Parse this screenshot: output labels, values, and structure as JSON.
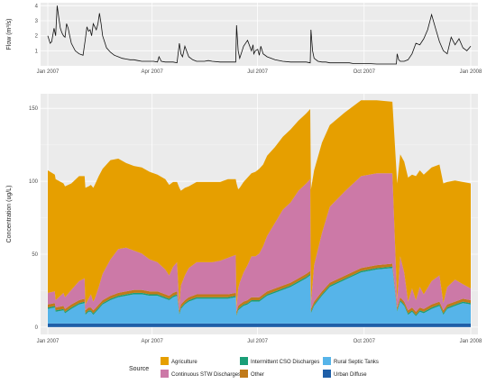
{
  "chart_data": [
    {
      "type": "line",
      "ylabel": "Flow (m³/s)",
      "ylim": [
        0,
        4.2
      ],
      "yticks": [
        1,
        2,
        3,
        4
      ],
      "xticks": [
        "Jan 2007",
        "Apr 2007",
        "Jul 2007",
        "Oct 2007",
        "Jan 2008"
      ],
      "grid": true,
      "series": [
        {
          "x": [
            0,
            3,
            5,
            8,
            10,
            12,
            14,
            16,
            18,
            20,
            22,
            24,
            26,
            28,
            30,
            35,
            40,
            45,
            48,
            50,
            52,
            54,
            56,
            58,
            60,
            62,
            64,
            66,
            68,
            70,
            75,
            80,
            85,
            90,
            95,
            100,
            105,
            110,
            115,
            120,
            125,
            130,
            135,
            140,
            142,
            145,
            150,
            155,
            160,
            165,
            168,
            170,
            172,
            175,
            180,
            185,
            190,
            195,
            200,
            205,
            210,
            220,
            230,
            240,
            241,
            243,
            245,
            250,
            255,
            260,
            262,
            263,
            265,
            268,
            270,
            272,
            275,
            280,
            290,
            300,
            310,
            320,
            330,
            335,
            336,
            338,
            340,
            345,
            350,
            355,
            360,
            365,
            370,
            375,
            380,
            385,
            390,
            400,
            410,
            420,
            430,
            440,
            445,
            446,
            448,
            450,
            455,
            460,
            465,
            470,
            475,
            480,
            485,
            490,
            495,
            500,
            505,
            510,
            515,
            520,
            525,
            530,
            535,
            540
          ],
          "values": [
            2.0,
            1.5,
            1.6,
            2.5,
            2.0,
            4.0,
            3.2,
            2.5,
            2.2,
            2.0,
            1.9,
            2.8,
            2.5,
            2.0,
            1.5,
            1.0,
            0.8,
            0.7,
            1.8,
            2.6,
            2.3,
            2.4,
            2.0,
            2.8,
            2.6,
            2.4,
            2.8,
            3.5,
            2.8,
            2.0,
            1.2,
            0.9,
            0.7,
            0.6,
            0.5,
            0.45,
            0.4,
            0.4,
            0.35,
            0.3,
            0.3,
            0.3,
            0.3,
            0.25,
            0.6,
            0.3,
            0.25,
            0.25,
            0.25,
            0.2,
            1.5,
            0.8,
            0.6,
            1.3,
            0.6,
            0.4,
            0.3,
            0.3,
            0.3,
            0.35,
            0.3,
            0.25,
            0.25,
            0.25,
            2.7,
            1.0,
            0.5,
            1.3,
            1.7,
            1.0,
            1.4,
            0.8,
            1.0,
            1.1,
            0.7,
            1.3,
            0.8,
            0.6,
            0.4,
            0.3,
            0.25,
            0.25,
            0.25,
            0.2,
            2.4,
            1.0,
            0.5,
            0.3,
            0.25,
            0.25,
            0.2,
            0.2,
            0.2,
            0.2,
            0.2,
            0.2,
            0.15,
            0.15,
            0.15,
            0.12,
            0.12,
            0.12,
            0.12,
            0.8,
            0.4,
            0.3,
            0.3,
            0.4,
            0.8,
            1.5,
            1.4,
            1.8,
            2.4,
            3.4,
            2.5,
            1.6,
            1.0,
            0.8,
            1.9,
            1.4,
            1.8,
            1.2,
            1.0,
            1.3
          ]
        }
      ]
    },
    {
      "type": "area",
      "ylabel": "Concentration (ug/L)",
      "ylim": [
        -5,
        160
      ],
      "yticks": [
        0,
        50,
        100,
        150
      ],
      "xticks": [
        "Jan 2007",
        "Apr 2007",
        "Jul 2007",
        "Oct 2007",
        "Jan 2008"
      ],
      "grid": true,
      "stacked": true,
      "legend": {
        "title": "Source",
        "placement": "bottom",
        "entries": [
          "Agriculture",
          "Continuous STW Discharges",
          "Intermittent CSO Discharges",
          "Other",
          "Rural Septic Tanks",
          "Urban Diffuse"
        ]
      },
      "x_knots": [
        0,
        9,
        10,
        20,
        22,
        30,
        40,
        47,
        48,
        52,
        55,
        58,
        60,
        65,
        70,
        80,
        90,
        100,
        110,
        120,
        130,
        140,
        150,
        155,
        160,
        165,
        168,
        170,
        175,
        180,
        190,
        200,
        210,
        220,
        230,
        240,
        241,
        243,
        245,
        250,
        255,
        260,
        265,
        270,
        275,
        280,
        290,
        300,
        310,
        320,
        330,
        335,
        336,
        340,
        350,
        360,
        380,
        400,
        420,
        440,
        446,
        450,
        455,
        460,
        465,
        470,
        475,
        480,
        490,
        500,
        505,
        510,
        520,
        530,
        540
      ],
      "series": [
        {
          "name": "Urban Diffuse",
          "color": "#1f5fa8",
          "values": [
            2.5,
            2.5,
            2.5,
            2.5,
            2.5,
            2.5,
            2.5,
            2.5,
            2.5,
            2.5,
            2.5,
            2.5,
            2.5,
            2.5,
            2.5,
            2.5,
            2.5,
            2.5,
            2.5,
            2.5,
            2.5,
            2.5,
            2.5,
            2.5,
            2.5,
            2.5,
            2.5,
            2.5,
            2.5,
            2.5,
            2.5,
            2.5,
            2.5,
            2.5,
            2.5,
            2.5,
            2.5,
            2.5,
            2.5,
            2.5,
            2.5,
            2.5,
            2.5,
            2.5,
            2.5,
            2.5,
            2.5,
            2.5,
            2.5,
            2.5,
            2.5,
            2.5,
            2.5,
            2.5,
            2.5,
            2.5,
            2.5,
            2.5,
            2.5,
            2.5,
            2.5,
            2.5,
            2.5,
            2.5,
            2.5,
            2.5,
            2.5,
            2.5,
            2.5,
            2.5,
            2.5,
            2.5,
            2.5,
            2.5,
            2.5
          ]
        },
        {
          "name": "Rural Septic Tanks",
          "color": "#56b4e9",
          "values": [
            10,
            11,
            8,
            9,
            7,
            10,
            13,
            14,
            6,
            8,
            8,
            6,
            7,
            10,
            13,
            16,
            18,
            19,
            20,
            20,
            19,
            19,
            17,
            16,
            18,
            19,
            6,
            10,
            13,
            15,
            17,
            17,
            17,
            17,
            17,
            18,
            5,
            9,
            10,
            12,
            13,
            15,
            15,
            15,
            17,
            19,
            21,
            23,
            25,
            28,
            31,
            33,
            7,
            12,
            19,
            25,
            30,
            35,
            37,
            38,
            8,
            15,
            12,
            6,
            8,
            5,
            8,
            7,
            10,
            12,
            6,
            10,
            12,
            14,
            13
          ]
        },
        {
          "name": "Intermittent CSO Discharges",
          "color": "#1a9e77",
          "values": [
            1,
            1,
            1,
            1,
            1,
            1,
            1,
            1,
            1,
            1,
            1,
            1,
            1,
            1,
            1,
            1,
            1,
            1,
            1,
            1,
            1,
            1,
            1,
            1,
            1,
            1,
            1,
            1,
            1,
            1,
            1,
            1,
            1,
            1,
            1,
            1,
            1,
            1,
            1,
            1,
            1,
            1,
            1,
            1,
            1,
            1,
            1,
            1,
            1,
            1,
            1,
            1,
            1,
            1,
            1,
            1,
            1,
            1,
            1,
            1,
            1,
            1,
            1,
            1,
            1,
            1,
            1,
            1,
            1,
            1,
            1,
            1,
            1,
            1,
            1
          ]
        },
        {
          "name": "Other",
          "color": "#c07a1a",
          "values": [
            2,
            2,
            2,
            2,
            2,
            2,
            2,
            2,
            2,
            2,
            2,
            2,
            2,
            2,
            2,
            2,
            2,
            2,
            2,
            2,
            2,
            2,
            2,
            2,
            2,
            2,
            2,
            2,
            2,
            2,
            2,
            2,
            2,
            2,
            2,
            2,
            2,
            2,
            2,
            2,
            2,
            2,
            2,
            2,
            2,
            2,
            2,
            2,
            2,
            2,
            2,
            2,
            2,
            2,
            2,
            2,
            2,
            2,
            2,
            2,
            2,
            2,
            2,
            2,
            2,
            2,
            2,
            2,
            2,
            2,
            2,
            2,
            2,
            2,
            2
          ]
        },
        {
          "name": "Continuous STW Discharges",
          "color": "#cc79a7",
          "values": [
            8,
            8,
            5,
            9,
            8,
            10,
            13,
            14,
            4,
            6,
            9,
            6,
            7,
            12,
            18,
            25,
            30,
            30,
            27,
            25,
            22,
            20,
            17,
            14,
            18,
            20,
            4,
            13,
            17,
            20,
            22,
            22,
            22,
            23,
            25,
            26,
            3,
            12,
            15,
            20,
            24,
            28,
            28,
            30,
            33,
            38,
            45,
            52,
            55,
            60,
            62,
            63,
            4,
            25,
            40,
            52,
            58,
            63,
            63,
            62,
            5,
            28,
            20,
            6,
            13,
            8,
            14,
            10,
            16,
            18,
            5,
            12,
            15,
            10,
            8
          ]
        },
        {
          "name": "Agriculture",
          "color": "#e69f00",
          "values": [
            84,
            80,
            83,
            75,
            76,
            73,
            72,
            70,
            80,
            77,
            75,
            78,
            78,
            76,
            72,
            68,
            62,
            58,
            58,
            59,
            60,
            60,
            62,
            62,
            58,
            55,
            80,
            65,
            60,
            56,
            55,
            55,
            55,
            54,
            54,
            52,
            85,
            68,
            65,
            62,
            60,
            57,
            58,
            58,
            56,
            55,
            52,
            50,
            50,
            48,
            48,
            48,
            78,
            65,
            62,
            56,
            54,
            52,
            50,
            49,
            80,
            70,
            76,
            85,
            78,
            85,
            80,
            82,
            78,
            76,
            82,
            72,
            68,
            70,
            72
          ]
        }
      ]
    }
  ]
}
